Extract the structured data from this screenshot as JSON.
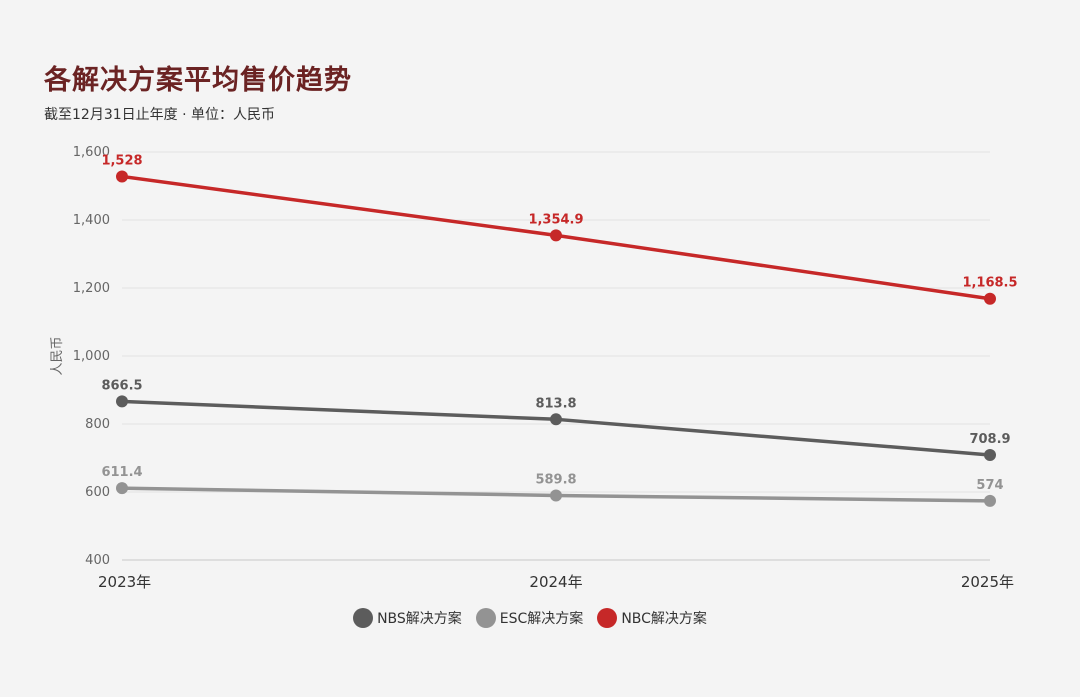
{
  "header": {
    "title": "各解决方案平均售价趋势",
    "subtitle": "截至12月31日止年度 · 单位：人民币"
  },
  "chart_data": {
    "type": "line",
    "title": "各解决方案平均售价趋势",
    "subtitle": "截至12月31日止年度 · 单位：人民币",
    "xlabel": "",
    "ylabel": "人民币",
    "categories": [
      "2023年",
      "2024年",
      "2025年"
    ],
    "ylim": [
      400,
      1600
    ],
    "yticks": [
      400,
      600,
      800,
      1000,
      1200,
      1400,
      1600
    ],
    "ytick_labels": [
      "400",
      "600",
      "800",
      "1,000",
      "1,200",
      "1,400",
      "1,600"
    ],
    "grid": true,
    "legend_position": "bottom-center",
    "series": [
      {
        "name": "NBS解决方案",
        "color": "#5c5c5c",
        "values": [
          866.5,
          813.8,
          708.9
        ],
        "labels": [
          "866.5",
          "813.8",
          "708.9"
        ]
      },
      {
        "name": "ESC解决方案",
        "color": "#939393",
        "values": [
          611.4,
          589.8,
          574
        ],
        "labels": [
          "611.4",
          "589.8",
          "574"
        ]
      },
      {
        "name": "NBC解决方案",
        "color": "#c62828",
        "values": [
          1528,
          1354.9,
          1168.5
        ],
        "labels": [
          "1,528",
          "1,354.9",
          "1,168.5"
        ]
      }
    ]
  }
}
